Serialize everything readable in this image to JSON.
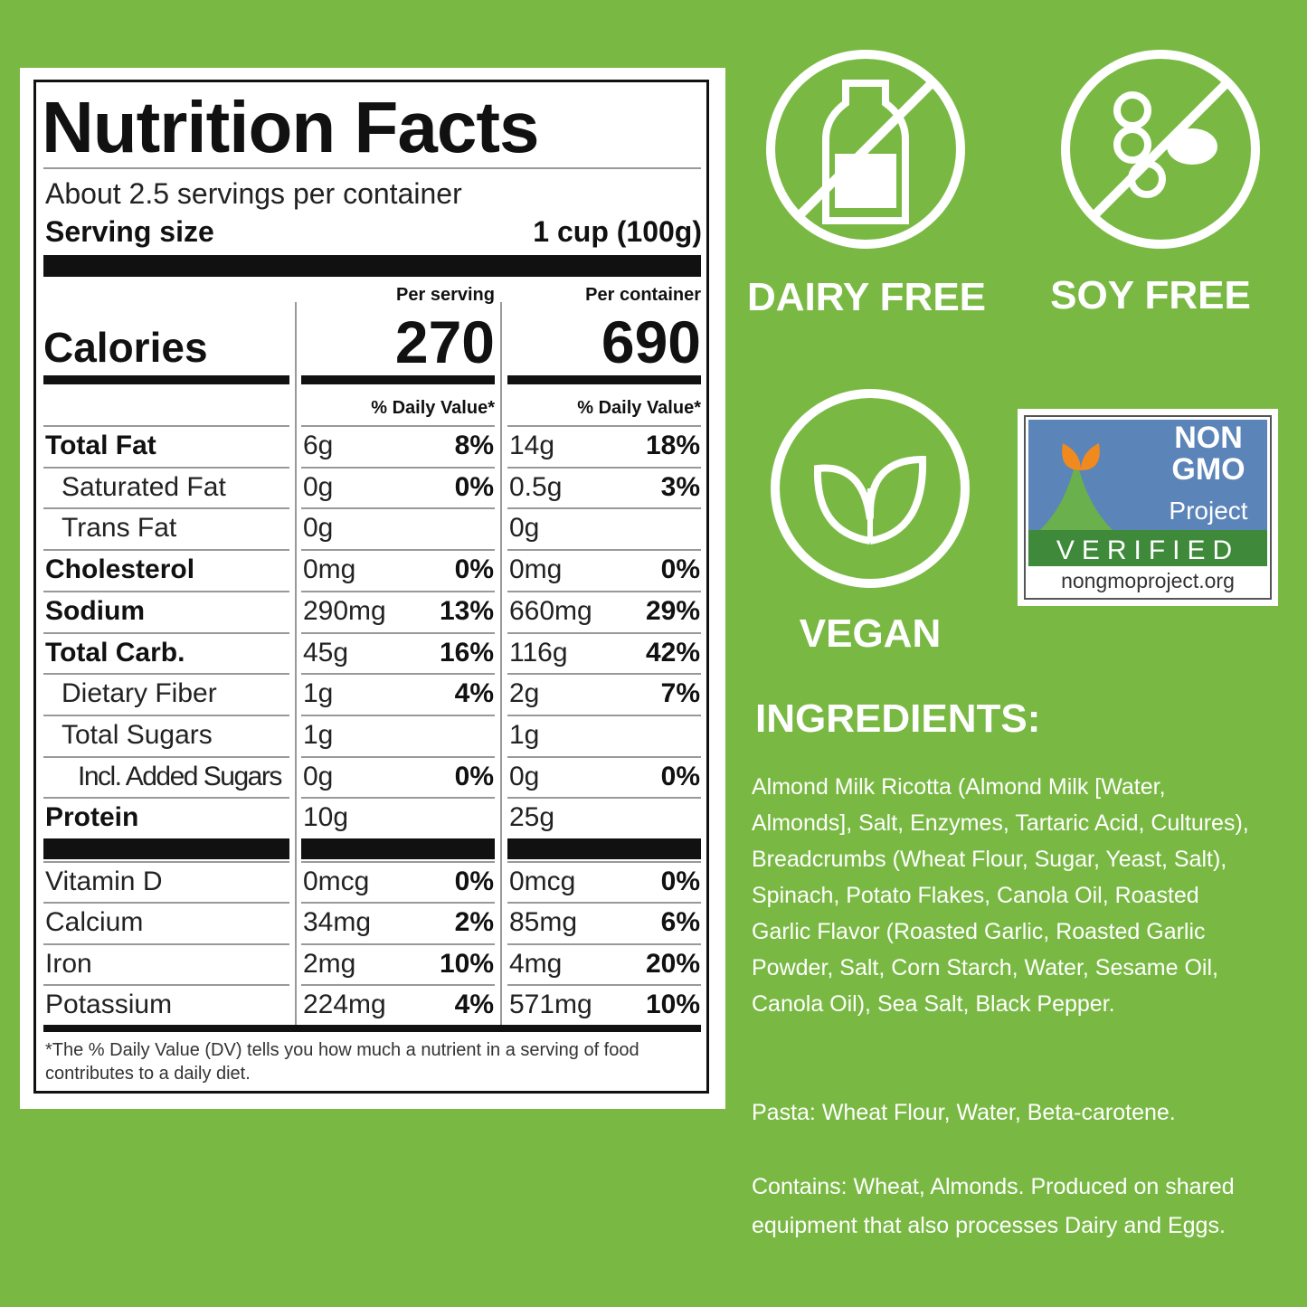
{
  "nutrition": {
    "title": "Nutrition Facts",
    "servings": "About 2.5 servings per container",
    "serving_size_label": "Serving size",
    "serving_size_value": "1 cup (100g)",
    "per_serving_label": "Per serving",
    "per_container_label": "Per container",
    "calories_label": "Calories",
    "calories_serving": "270",
    "calories_container": "690",
    "dv_header": "% Daily Value*",
    "nutrients": [
      {
        "name": "Total Fat",
        "bold": true,
        "indent": 0,
        "serving": "6g",
        "serving_dv": "8%",
        "container": "14g",
        "container_dv": "18%"
      },
      {
        "name": "Saturated Fat",
        "bold": false,
        "indent": 1,
        "serving": "0g",
        "serving_dv": "0%",
        "container": "0.5g",
        "container_dv": "3%"
      },
      {
        "name": "Trans Fat",
        "bold": false,
        "indent": 1,
        "serving": "0g",
        "serving_dv": null,
        "container": "0g",
        "container_dv": null
      },
      {
        "name": "Cholesterol",
        "bold": true,
        "indent": 0,
        "serving": "0mg",
        "serving_dv": "0%",
        "container": "0mg",
        "container_dv": "0%"
      },
      {
        "name": "Sodium",
        "bold": true,
        "indent": 0,
        "serving": "290mg",
        "serving_dv": "13%",
        "container": "660mg",
        "container_dv": "29%"
      },
      {
        "name": "Total Carb.",
        "bold": true,
        "indent": 0,
        "serving": "45g",
        "serving_dv": "16%",
        "container": "116g",
        "container_dv": "42%"
      },
      {
        "name": "Dietary Fiber",
        "bold": false,
        "indent": 1,
        "serving": "1g",
        "serving_dv": "4%",
        "container": "2g",
        "container_dv": "7%"
      },
      {
        "name": "Total Sugars",
        "bold": false,
        "indent": 1,
        "serving": "1g",
        "serving_dv": null,
        "container": "1g",
        "container_dv": null
      },
      {
        "name": "Incl. Added Sugars",
        "bold": false,
        "indent": 2,
        "serving": "0g",
        "serving_dv": "0%",
        "container": "0g",
        "container_dv": "0%"
      },
      {
        "name": "Protein",
        "bold": true,
        "indent": 0,
        "serving": "10g",
        "serving_dv": null,
        "container": "25g",
        "container_dv": null
      }
    ],
    "vitamins": [
      {
        "name": "Vitamin D",
        "bold": false,
        "indent": 0,
        "serving": "0mcg",
        "serving_dv": "0%",
        "container": "0mcg",
        "container_dv": "0%"
      },
      {
        "name": "Calcium",
        "bold": false,
        "indent": 0,
        "serving": "34mg",
        "serving_dv": "2%",
        "container": "85mg",
        "container_dv": "6%"
      },
      {
        "name": "Iron",
        "bold": false,
        "indent": 0,
        "serving": "2mg",
        "serving_dv": "10%",
        "container": "4mg",
        "container_dv": "20%"
      },
      {
        "name": "Potassium",
        "bold": false,
        "indent": 0,
        "serving": "224mg",
        "serving_dv": "4%",
        "container": "571mg",
        "container_dv": "10%"
      }
    ],
    "footnote": "*The % Daily Value (DV) tells you how much a nutrient in a serving of food contributes to a daily diet."
  },
  "badges": {
    "dairy_free": "DAIRY FREE",
    "soy_free": "SOY FREE",
    "vegan": "VEGAN"
  },
  "non_gmo": {
    "line1": "NON",
    "line2": "GMO",
    "line3": "Project",
    "verified": "VERIFIED",
    "url": "nongmoproject.org"
  },
  "ingredients": {
    "heading": "INGREDIENTS:",
    "paragraphs": [
      "Almond Milk Ricotta (Almond Milk [Water, Almonds], Salt, Enzymes, Tartaric Acid, Cultures), Breadcrumbs (Wheat Flour, Sugar, Yeast, Salt), Spinach, Potato Flakes, Canola Oil, Roasted Garlic Flavor (Roasted Garlic, Roasted Garlic Powder, Salt, Corn Starch, Water, Sesame Oil, Canola Oil), Sea Salt, Black Pepper.",
      "Pasta: Wheat Flour, Water, Beta-carotene.",
      "Contains: Wheat, Almonds. Produced on shared equipment that also processes Dairy and Eggs."
    ]
  }
}
